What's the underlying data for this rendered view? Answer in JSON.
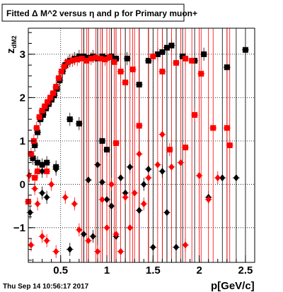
{
  "title": "Fitted Δ M^2 versus η and p for Primary muon+",
  "timestamp": "Thu Sep 14 10:56:17 2017",
  "chart_data": {
    "type": "scatter",
    "title": "Fitted Δ M^2 versus η and p for Primary muon+",
    "xlabel": "p[GeV/c]",
    "ylabel": "z_{dM2}",
    "xlim": [
      0.15,
      2.6
    ],
    "ylim": [
      -1.8,
      3.6
    ],
    "x_ticks": [
      0.5,
      1,
      1.5,
      2,
      2.5
    ],
    "x_tick_labels": [
      "0.5",
      "1",
      "1.5",
      "2",
      "2.5"
    ],
    "y_ticks": [
      -1,
      0,
      1,
      2,
      3
    ],
    "y_tick_labels": [
      "−1",
      "0",
      "1",
      "2",
      "3"
    ],
    "grid": true,
    "colors": {
      "black": "#000000",
      "red": "#ff0000"
    },
    "series": [
      {
        "marker": "square",
        "color": "#000000",
        "points": [
          [
            0.2,
            0.6
          ],
          [
            0.22,
            0.9
          ],
          [
            0.25,
            1.2
          ],
          [
            0.28,
            1.5
          ],
          [
            0.31,
            1.6
          ],
          [
            0.34,
            1.75
          ],
          [
            0.37,
            1.85
          ],
          [
            0.4,
            1.95
          ],
          [
            0.43,
            2.05
          ],
          [
            0.46,
            2.2
          ],
          [
            0.49,
            2.4
          ],
          [
            0.52,
            2.6
          ],
          [
            0.55,
            2.75
          ],
          [
            0.6,
            2.85
          ],
          [
            0.65,
            2.9
          ],
          [
            0.7,
            2.95
          ],
          [
            0.75,
            2.95
          ],
          [
            0.8,
            2.92
          ],
          [
            0.85,
            2.95
          ],
          [
            0.9,
            2.9
          ],
          [
            0.95,
            2.95
          ],
          [
            1.0,
            2.92
          ],
          [
            1.05,
            2.95
          ],
          [
            1.1,
            2.9
          ],
          [
            1.22,
            2.9
          ],
          [
            1.35,
            2.3
          ],
          [
            1.45,
            2.85
          ],
          [
            1.55,
            3.0
          ],
          [
            1.6,
            3.05
          ],
          [
            1.65,
            3.15
          ],
          [
            1.7,
            3.2
          ],
          [
            1.82,
            2.95
          ],
          [
            1.95,
            2.85
          ],
          [
            2.05,
            3.0
          ],
          [
            2.3,
            2.7
          ],
          [
            2.5,
            3.1
          ],
          [
            0.6,
            1.5
          ],
          [
            0.7,
            1.4
          ],
          [
            0.95,
            1.0
          ],
          [
            1.0,
            0.8
          ],
          [
            0.35,
            0.5
          ],
          [
            0.25,
            0.5
          ],
          [
            0.3,
            0.45
          ],
          [
            0.45,
            0.4
          ]
        ]
      },
      {
        "marker": "square",
        "color": "#ff0000",
        "points": [
          [
            0.18,
            0.7
          ],
          [
            0.21,
            1.0
          ],
          [
            0.24,
            1.3
          ],
          [
            0.27,
            1.55
          ],
          [
            0.3,
            1.7
          ],
          [
            0.33,
            1.8
          ],
          [
            0.36,
            1.9
          ],
          [
            0.39,
            2.0
          ],
          [
            0.42,
            2.1
          ],
          [
            0.45,
            2.25
          ],
          [
            0.48,
            2.45
          ],
          [
            0.51,
            2.6
          ],
          [
            0.54,
            2.72
          ],
          [
            0.58,
            2.82
          ],
          [
            0.63,
            2.86
          ],
          [
            0.68,
            2.88
          ],
          [
            0.73,
            2.9
          ],
          [
            0.78,
            2.85
          ],
          [
            0.83,
            2.9
          ],
          [
            0.88,
            2.92
          ],
          [
            0.93,
            2.9
          ],
          [
            0.98,
            2.88
          ],
          [
            1.03,
            2.93
          ],
          [
            1.08,
            2.82
          ],
          [
            1.15,
            2.6
          ],
          [
            1.2,
            2.35
          ],
          [
            1.28,
            2.65
          ],
          [
            1.5,
            2.95
          ],
          [
            1.6,
            2.6
          ],
          [
            1.75,
            2.8
          ],
          [
            1.85,
            2.9
          ],
          [
            1.92,
            2.85
          ],
          [
            2.02,
            2.55
          ],
          [
            1.95,
            1.6
          ],
          [
            2.15,
            1.3
          ],
          [
            2.33,
            0.9
          ],
          [
            1.35,
            1.35
          ],
          [
            1.1,
            0.95
          ],
          [
            0.25,
            0.3
          ],
          [
            0.35,
            0.3
          ],
          [
            0.22,
            0.15
          ],
          [
            0.15,
            -0.4
          ],
          [
            1.68,
            0.8
          ],
          [
            1.85,
            0.85
          ],
          [
            2.3,
            1.3
          ]
        ]
      },
      {
        "marker": "diamond",
        "color": "#000000",
        "points": [
          [
            0.17,
            -0.65
          ],
          [
            0.3,
            -0.2
          ],
          [
            0.35,
            -0.3
          ],
          [
            0.6,
            -1.5
          ],
          [
            0.75,
            -1.15
          ],
          [
            0.8,
            0.1
          ],
          [
            0.85,
            -1.2
          ],
          [
            0.9,
            0.45
          ],
          [
            0.95,
            0.05
          ],
          [
            1.0,
            -0.35
          ],
          [
            1.05,
            -0.5
          ],
          [
            1.1,
            -1.2
          ],
          [
            1.15,
            0.15
          ],
          [
            1.2,
            -0.2
          ],
          [
            1.35,
            -0.6
          ],
          [
            1.4,
            0.0
          ],
          [
            1.45,
            0.35
          ],
          [
            1.5,
            -1.45
          ],
          [
            1.6,
            0.3
          ],
          [
            1.65,
            -0.65
          ],
          [
            1.75,
            -1.45
          ],
          [
            2.1,
            -0.3
          ],
          [
            2.25,
            0.15
          ],
          [
            2.4,
            0.15
          ],
          [
            1.25,
            0.4
          ],
          [
            0.3,
            0.3
          ],
          [
            0.45,
            0.35
          ]
        ]
      },
      {
        "marker": "diamond",
        "color": "#ff0000",
        "points": [
          [
            0.16,
            0.2
          ],
          [
            0.18,
            -1.4
          ],
          [
            0.22,
            -0.1
          ],
          [
            0.25,
            -0.45
          ],
          [
            0.3,
            -1.2
          ],
          [
            0.35,
            -1.3
          ],
          [
            0.4,
            0.0
          ],
          [
            0.45,
            -1.55
          ],
          [
            0.55,
            -0.3
          ],
          [
            0.65,
            -0.45
          ],
          [
            0.7,
            -1.05
          ],
          [
            0.8,
            -1.3
          ],
          [
            0.9,
            -1.55
          ],
          [
            0.95,
            -0.35
          ],
          [
            1.0,
            -1.0
          ],
          [
            1.05,
            0.0
          ],
          [
            1.1,
            -1.15
          ],
          [
            1.15,
            -1.55
          ],
          [
            1.2,
            -0.3
          ],
          [
            1.25,
            -1.0
          ],
          [
            1.3,
            -0.2
          ],
          [
            1.4,
            -0.45
          ],
          [
            1.45,
            0.15
          ],
          [
            1.55,
            0.45
          ],
          [
            1.6,
            1.15
          ],
          [
            1.7,
            0.4
          ],
          [
            1.8,
            0.5
          ],
          [
            1.85,
            -1.4
          ],
          [
            2.0,
            0.2
          ],
          [
            2.1,
            -0.35
          ],
          [
            2.2,
            0.15
          ],
          [
            1.35,
            0.7
          ]
        ]
      }
    ]
  }
}
